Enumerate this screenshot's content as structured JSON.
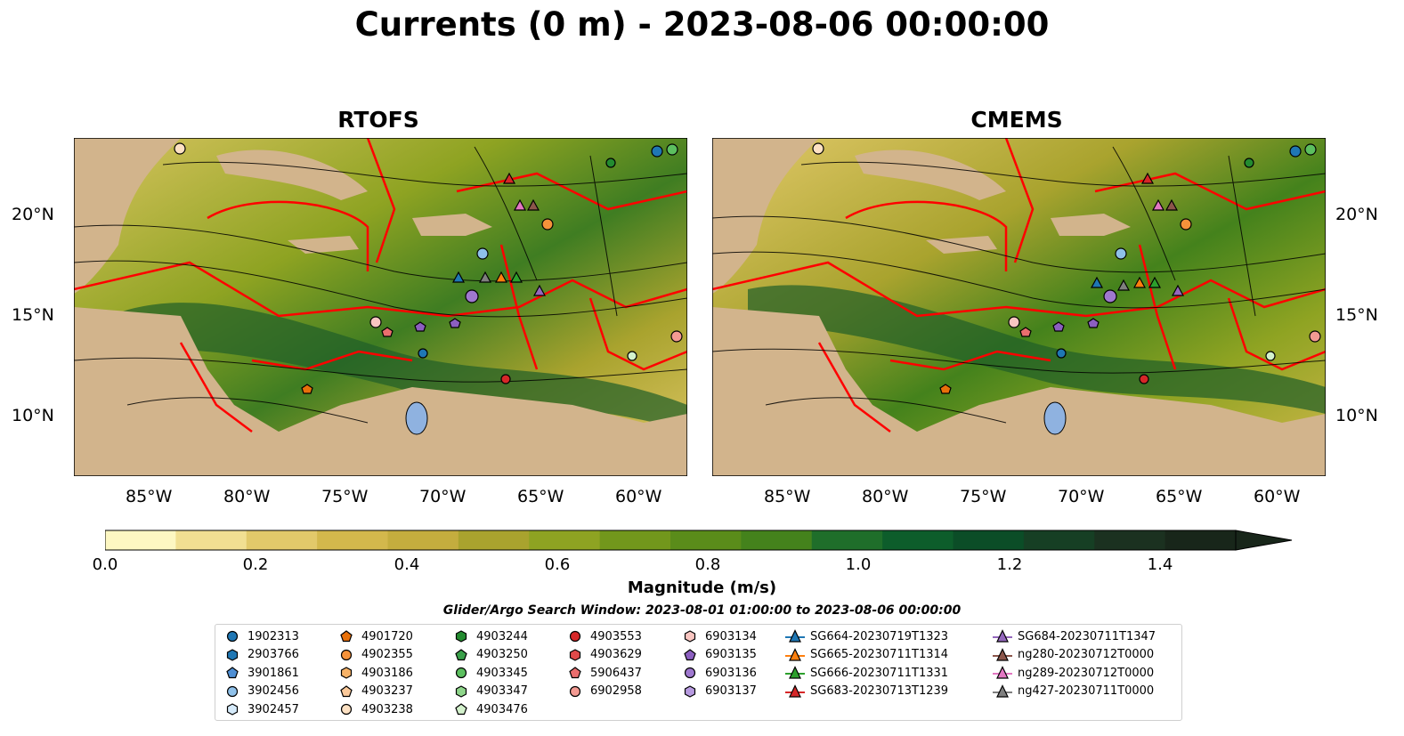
{
  "title": "Currents (0 m) - 2023-08-06 00:00:00",
  "panels": [
    {
      "title": "RTOFS"
    },
    {
      "title": "CMEMS"
    }
  ],
  "lat_labels": [
    "20°N",
    "15°N",
    "10°N"
  ],
  "lon_labels": [
    "85°W",
    "80°W",
    "75°W",
    "70°W",
    "65°W",
    "60°W"
  ],
  "colorbar": {
    "ticks": [
      "0.0",
      "0.2",
      "0.4",
      "0.6",
      "0.8",
      "1.0",
      "1.2",
      "1.4"
    ],
    "label": "Magnitude (m/s)",
    "colors": [
      "#fdf7c2",
      "#f1df92",
      "#e2c96a",
      "#d3b84c",
      "#c4ad3e",
      "#a9a32e",
      "#8ea322",
      "#72971c",
      "#5a8c1a",
      "#44821c",
      "#1f6e2a",
      "#0d5d2b",
      "#0b4d27",
      "#163f24",
      "#1b3120",
      "#18261a"
    ]
  },
  "search_window": "Glider/Argo Search Window: 2023-08-01 01:00:00 to 2023-08-06 00:00:00",
  "legend": [
    {
      "label": "1902313",
      "marker": "circle",
      "color": "#1f77b4"
    },
    {
      "label": "2903766",
      "marker": "hexagon",
      "color": "#1f77b4"
    },
    {
      "label": "3901861",
      "marker": "pentagon",
      "color": "#4f8fd4"
    },
    {
      "label": "3902456",
      "marker": "circle",
      "color": "#8fc1ea"
    },
    {
      "label": "3902457",
      "marker": "hexagon",
      "color": "#d6ebfb"
    },
    {
      "label": "4901720",
      "marker": "pentagon",
      "color": "#e8700a"
    },
    {
      "label": "4902355",
      "marker": "circle",
      "color": "#f5923a"
    },
    {
      "label": "4903186",
      "marker": "hexagon",
      "color": "#f7b267"
    },
    {
      "label": "4903237",
      "marker": "pentagon",
      "color": "#fbc99a"
    },
    {
      "label": "4903238",
      "marker": "circle",
      "color": "#fde1c3"
    },
    {
      "label": "4903244",
      "marker": "hexagon",
      "color": "#238b30"
    },
    {
      "label": "4903250",
      "marker": "pentagon",
      "color": "#3aa04a"
    },
    {
      "label": "4903345",
      "marker": "circle",
      "color": "#5cbf5f"
    },
    {
      "label": "4903347",
      "marker": "hexagon",
      "color": "#8ed58a"
    },
    {
      "label": "4903476",
      "marker": "pentagon",
      "color": "#d3f1cc"
    },
    {
      "label": "4903553",
      "marker": "circle",
      "color": "#d62728"
    },
    {
      "label": "4903629",
      "marker": "hexagon",
      "color": "#e04a4a"
    },
    {
      "label": "5906437",
      "marker": "pentagon",
      "color": "#ea6e6e"
    },
    {
      "label": "6902958",
      "marker": "circle",
      "color": "#f49a92"
    },
    {
      "label": "6903134",
      "marker": "hexagon",
      "color": "#f9c6c1"
    },
    {
      "label": "6903135",
      "marker": "pentagon",
      "color": "#8c5fc0"
    },
    {
      "label": "6903136",
      "marker": "circle",
      "color": "#9f78cf"
    },
    {
      "label": "6903137",
      "marker": "hexagon",
      "color": "#b79ae0"
    },
    {
      "label": "SG664-20230719T1323",
      "marker": "triangle",
      "color": "#1f77b4"
    },
    {
      "label": "SG665-20230711T1314",
      "marker": "triangle",
      "color": "#ff7f0e"
    },
    {
      "label": "SG666-20230711T1331",
      "marker": "triangle",
      "color": "#2ca02c"
    },
    {
      "label": "SG683-20230713T1239",
      "marker": "triangle",
      "color": "#d62728"
    },
    {
      "label": "SG684-20230711T1347",
      "marker": "triangle",
      "color": "#9467bd"
    },
    {
      "label": "ng280-20230712T0000",
      "marker": "triangle",
      "color": "#8c564b"
    },
    {
      "label": "ng289-20230712T0000",
      "marker": "triangle",
      "color": "#e377c2"
    },
    {
      "label": "ng427-20230711T0000",
      "marker": "triangle",
      "color": "#7f7f7f"
    }
  ],
  "colors": {
    "land": "#d2b48c",
    "eez": "#ff0000",
    "lake": "#8fb2e0"
  }
}
